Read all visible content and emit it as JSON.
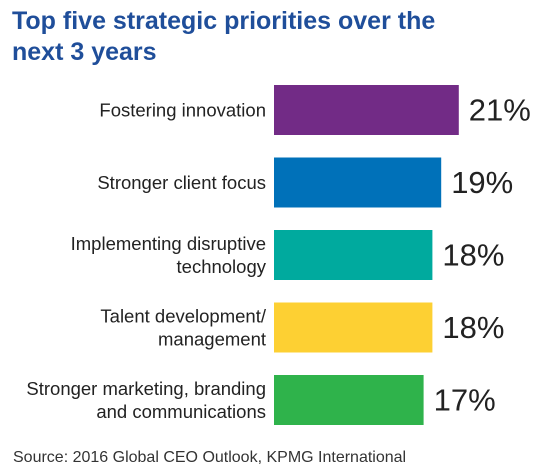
{
  "title": [
    "Top five strategic priorities over the",
    "next 3 years"
  ],
  "source": "Source: 2016 Global CEO Outlook, KPMG International",
  "chart_data": {
    "type": "bar",
    "orientation": "horizontal",
    "categories": [
      [
        "Fostering innovation"
      ],
      [
        "Stronger client focus"
      ],
      [
        "Implementing disruptive",
        "technology"
      ],
      [
        "Talent development/",
        "management"
      ],
      [
        "Stronger marketing, branding",
        "and communications"
      ]
    ],
    "values": [
      21,
      19,
      18,
      18,
      17
    ],
    "value_labels": [
      "21%",
      "19%",
      "18%",
      "18%",
      "17%"
    ],
    "colors": [
      "#722b86",
      "#0071b9",
      "#00aa9e",
      "#fdd033",
      "#2fb34b"
    ],
    "grid": false,
    "legend": false
  }
}
